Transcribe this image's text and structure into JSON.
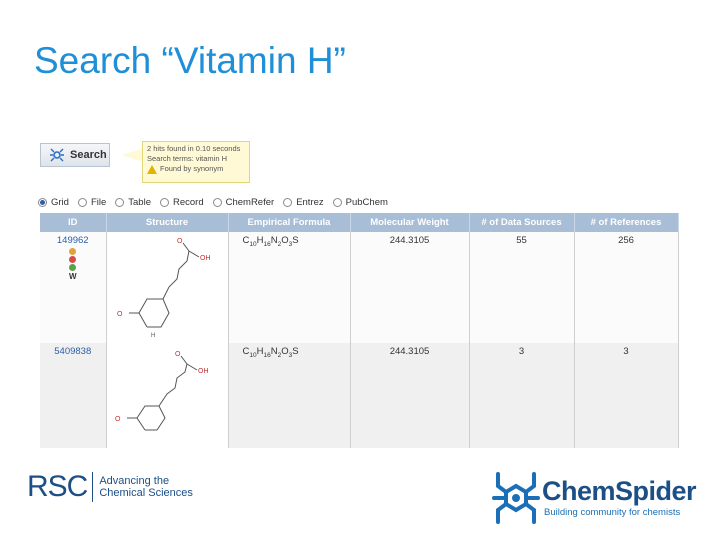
{
  "slide": {
    "title": "Search “Vitamin H”"
  },
  "search": {
    "button_label": "Search",
    "tooltip_line1": "2 hits found in 0.10 seconds",
    "tooltip_line2": "Search terms: vitamin H",
    "tooltip_line3": "Found by synonym"
  },
  "views": [
    {
      "label": "Grid",
      "checked": true
    },
    {
      "label": "File",
      "checked": false
    },
    {
      "label": "Table",
      "checked": false
    },
    {
      "label": "Record",
      "checked": false
    },
    {
      "label": "ChemRefer",
      "checked": false
    },
    {
      "label": "Entrez",
      "checked": false
    },
    {
      "label": "PubChem",
      "checked": false
    }
  ],
  "table": {
    "headers": [
      "ID",
      "Structure",
      "Empirical Formula",
      "Molecular Weight",
      "# of Data Sources",
      "# of References"
    ],
    "rows": [
      {
        "id": "149962",
        "formula_c": "10",
        "formula_h": "16",
        "formula_n": "2",
        "formula_o": "3",
        "weight": "244.3105",
        "sources": "55",
        "references": "256",
        "oh_label": "OH",
        "o_label": "O",
        "h_label": "H"
      },
      {
        "id": "5409838",
        "formula_c": "10",
        "formula_h": "16",
        "formula_n": "2",
        "formula_o": "3",
        "weight": "244.3105",
        "sources": "3",
        "references": "3",
        "oh_label": "OH",
        "o_label": "O",
        "h_label": ""
      }
    ]
  },
  "source_icon_colors": [
    "#e2a23a",
    "#d94a4a",
    "#58a34a",
    "#3d77c9"
  ],
  "footer": {
    "rsc_letters": "RSC",
    "rsc_tag_line1": "Advancing the",
    "rsc_tag_line2": "Chemical Sciences",
    "chemspider_name": "ChemSpider",
    "chemspider_tag": "Building community for chemists"
  },
  "colors": {
    "title": "#1f8fd8",
    "header": "#a8bdd6",
    "brand": "#1b4f86"
  }
}
